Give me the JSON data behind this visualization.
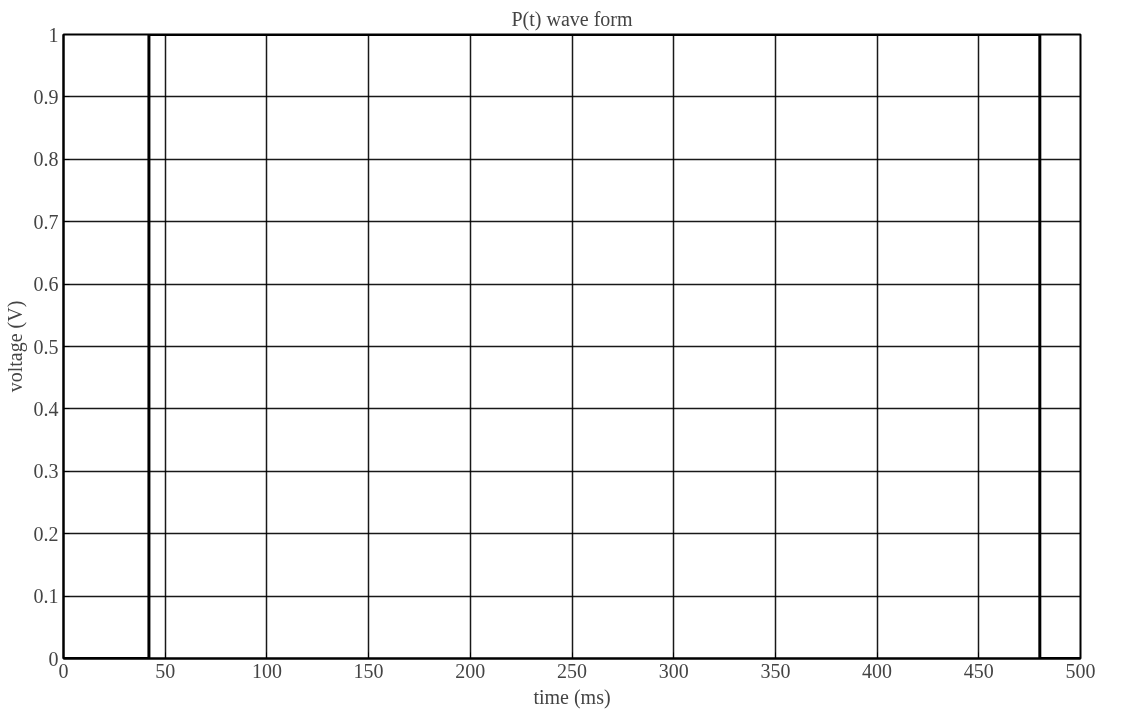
{
  "chart_data": {
    "type": "line",
    "title": "P(t) wave form",
    "xlabel": "time (ms)",
    "ylabel": "voltage (V)",
    "series": [
      {
        "color": "#000000",
        "x": [
          0,
          42,
          42,
          480,
          480,
          500
        ],
        "values": [
          0,
          0,
          1,
          1,
          0,
          0
        ]
      }
    ],
    "xlim": [
      0,
      500
    ],
    "ylim": [
      0,
      1
    ],
    "xticks": [
      0,
      50,
      100,
      150,
      200,
      250,
      300,
      350,
      400,
      450,
      500
    ],
    "yticks": [
      0,
      0.1,
      0.2,
      0.3,
      0.4,
      0.5,
      0.6,
      0.7,
      0.8,
      0.9,
      1
    ],
    "grid": true
  }
}
